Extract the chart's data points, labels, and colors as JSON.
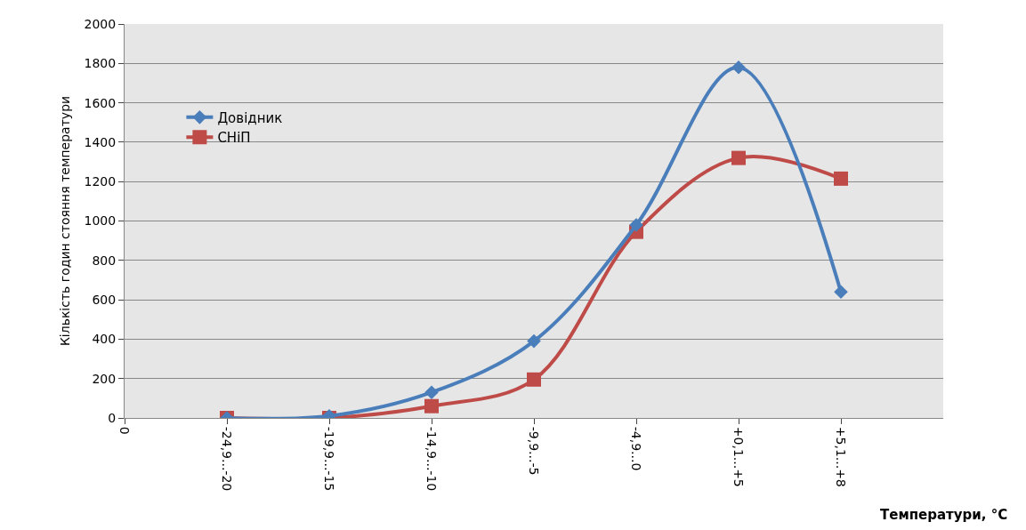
{
  "chart_data": {
    "type": "line",
    "xlabel": "Температури, °C",
    "ylabel": "Кількість годин стояння температури",
    "categories": [
      "0",
      "-24,9...-20",
      "-19,9...-15",
      "-14,9...-10",
      "-9,9...-5",
      "-4,9...0",
      "+0,1...+5",
      "+5,1...+8",
      null
    ],
    "series": [
      {
        "name": "Довідник",
        "color": "#4a7ebb",
        "marker": "diamond",
        "values": [
          null,
          0,
          10,
          130,
          390,
          980,
          1780,
          640,
          null
        ]
      },
      {
        "name": "СНіП",
        "color": "#be4b48",
        "marker": "square",
        "values": [
          null,
          0,
          0,
          60,
          195,
          945,
          1320,
          1215,
          null
        ]
      }
    ],
    "ylim": [
      0,
      2000
    ],
    "yticks": [
      0,
      200,
      400,
      600,
      800,
      1000,
      1200,
      1400,
      1600,
      1800,
      2000
    ],
    "grid": "y",
    "legend": "top left"
  }
}
